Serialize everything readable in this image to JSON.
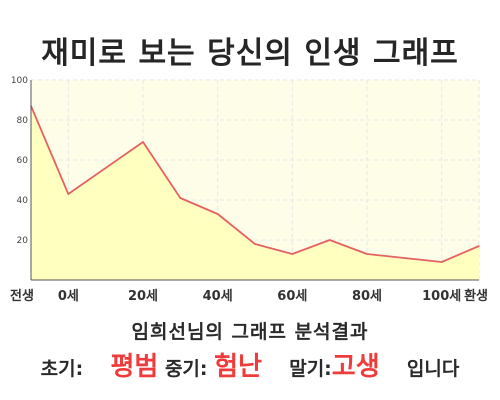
{
  "title": "재미로 보는 당신의 인생 그래프",
  "chart_data": {
    "type": "area",
    "title": "재미로 보는 당신의 인생 그래프",
    "x_tick_labels": [
      "전생",
      "0세",
      "20세",
      "40세",
      "60세",
      "80세",
      "100세",
      "환생"
    ],
    "y_ticks": [
      20,
      40,
      60,
      80,
      100
    ],
    "ylim": [
      0,
      100
    ],
    "grid": true,
    "series": [
      {
        "x": [
          -10,
          0,
          20,
          30,
          40,
          50,
          60,
          70,
          80,
          90,
          100,
          110
        ],
        "values": [
          87,
          43,
          69,
          41,
          33,
          18,
          13,
          20,
          13,
          11,
          9,
          17
        ]
      }
    ],
    "colors": {
      "line": "#e46262",
      "fill": "#ffffc0",
      "plot_bg": "#fefee8",
      "grid": "#e6e6e6"
    }
  },
  "caption": "임희선님의 그래프 분석결과",
  "result": {
    "early_label": "초기:",
    "early_value": "평범",
    "middle_label": "중기:",
    "middle_value": "험난",
    "late_label": "말기:",
    "late_value": "고생",
    "ending": "입니다"
  }
}
